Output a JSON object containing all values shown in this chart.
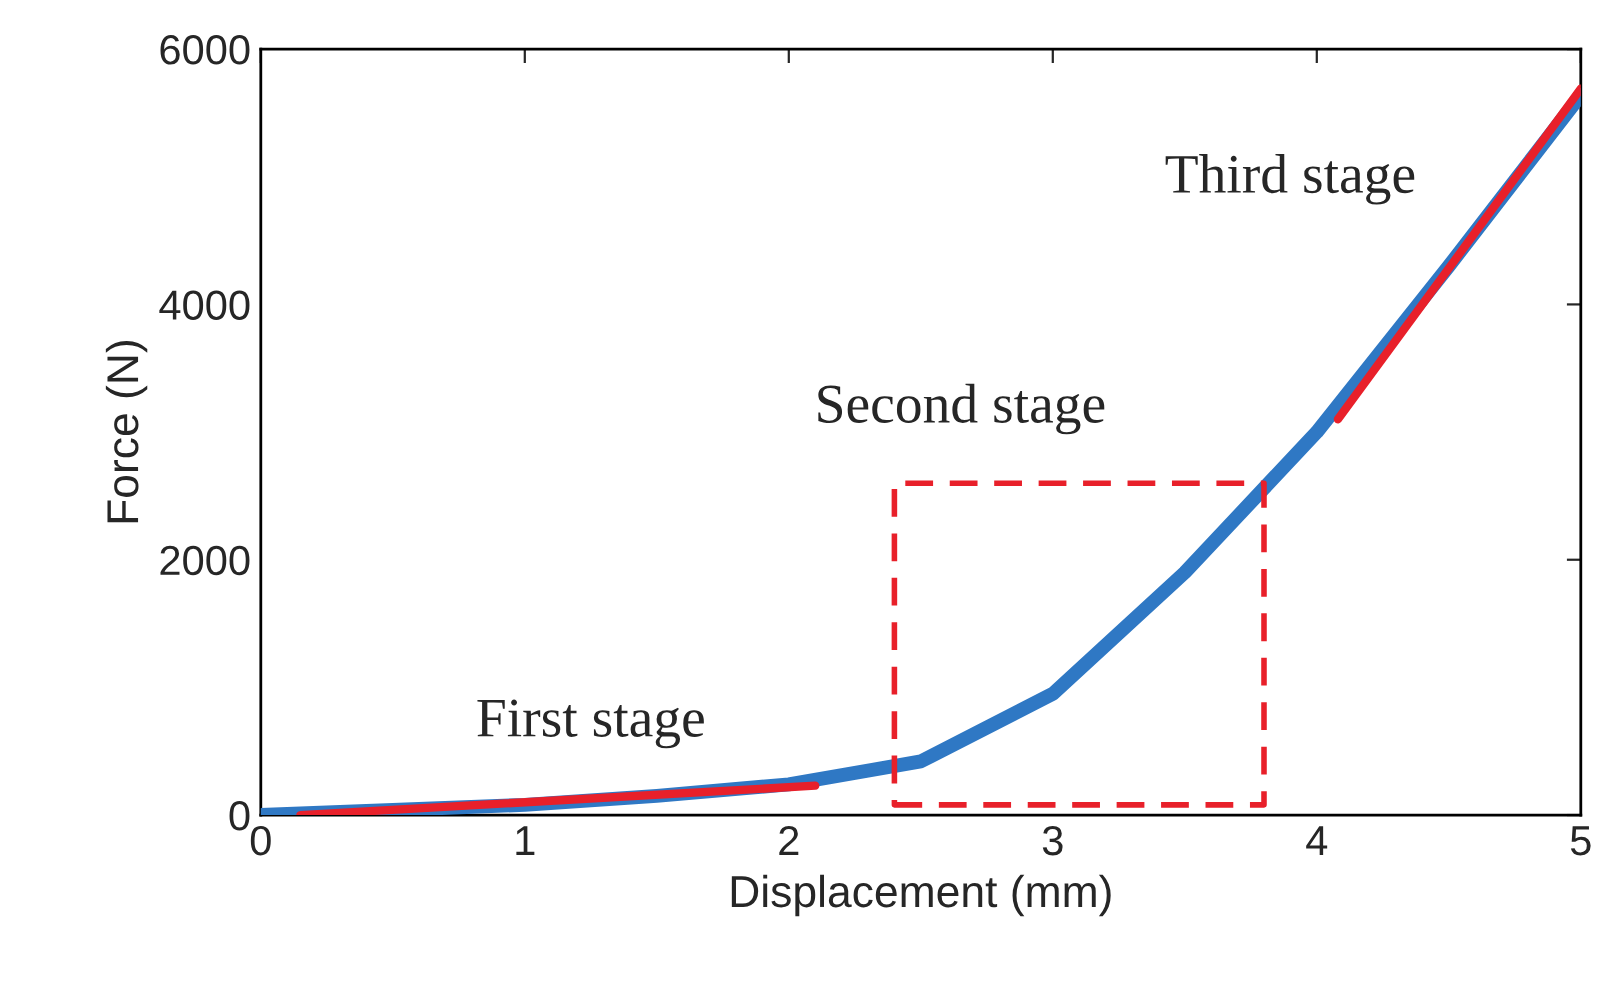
{
  "chart_data": {
    "type": "line",
    "xlabel": "Displacement (mm)",
    "ylabel": "Force (N)",
    "xlim": [
      0,
      5
    ],
    "ylim": [
      0,
      6000
    ],
    "xticks": [
      0,
      1,
      2,
      3,
      4,
      5
    ],
    "yticks": [
      0,
      2000,
      4000,
      6000
    ],
    "grid": false,
    "legend": false,
    "series": [
      {
        "color": "#2f78c4",
        "x": [
          0,
          0.5,
          1,
          1.5,
          2,
          2.5,
          3,
          3.5,
          4,
          4.5,
          5
        ],
        "values": [
          0,
          40,
          80,
          150,
          240,
          420,
          950,
          1900,
          3000,
          4300,
          5640
        ],
        "line_style": "solid"
      },
      {
        "color": "#e8202a",
        "x": [
          0.15,
          2.1
        ],
        "values": [
          0,
          230
        ],
        "line_style": "solid"
      },
      {
        "color": "#e8202a",
        "x": [
          4.08,
          5
        ],
        "values": [
          3100,
          5690
        ],
        "line_style": "solid"
      }
    ],
    "annotations": [
      "First stage",
      "Second stage",
      "Third stage"
    ]
  }
}
